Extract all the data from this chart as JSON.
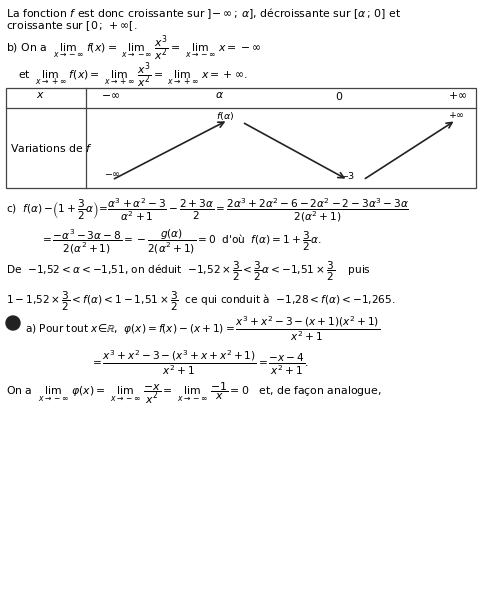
{
  "figsize": [
    4.82,
    6.1
  ],
  "dpi": 100,
  "bg_color": "#ffffff",
  "text_color": "#000000",
  "font_size": 7.8
}
